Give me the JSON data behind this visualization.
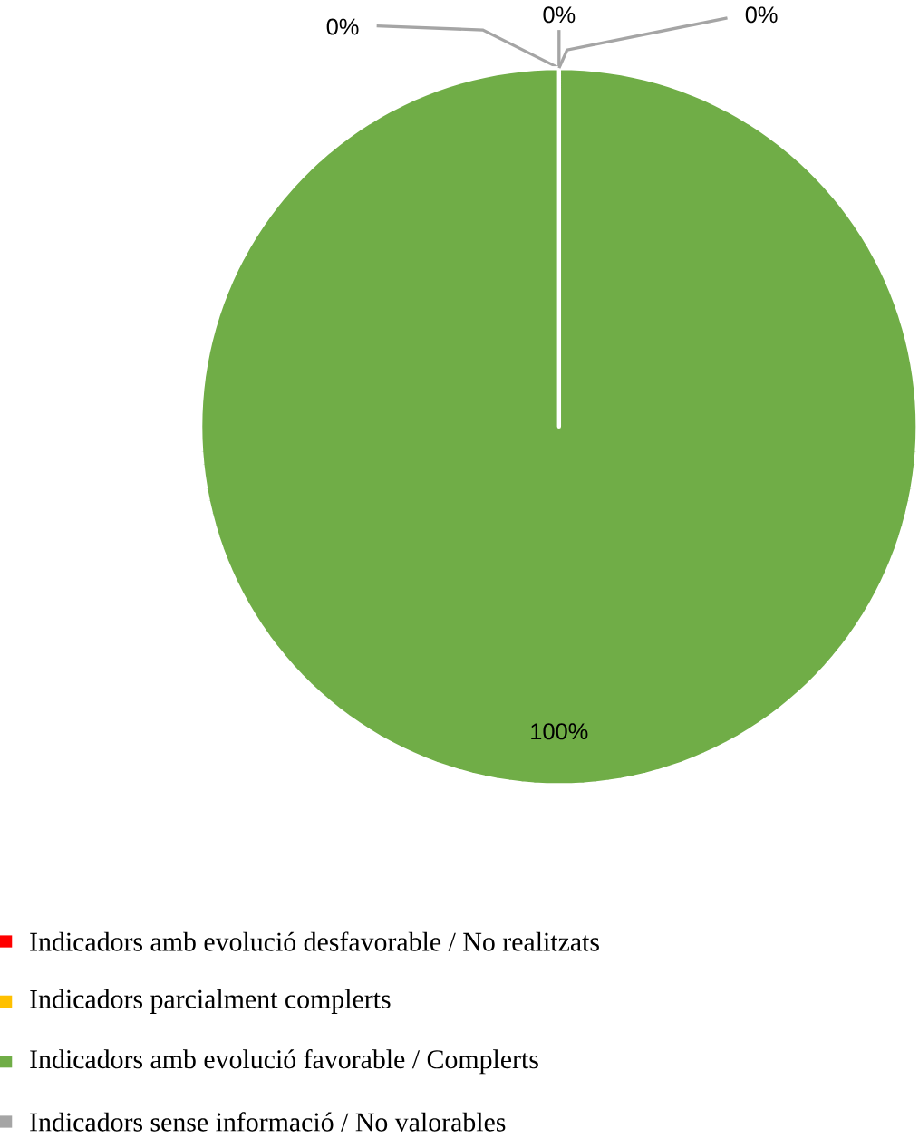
{
  "chart_data": {
    "type": "pie",
    "categories": [
      "Indicadors amb evolució desfavorable / No realitzats",
      "Indicadors parcialment complerts",
      "Indicadors amb evolució favorable / Complerts",
      "Indicadors sense informació / No valorables"
    ],
    "values": [
      0,
      0,
      100,
      0
    ],
    "colors": [
      "#ff0000",
      "#ffc000",
      "#70ad47",
      "#a5a5a5"
    ],
    "value_labels": [
      "0%",
      "0%",
      "100%",
      "0%"
    ],
    "legend": "bottom"
  }
}
